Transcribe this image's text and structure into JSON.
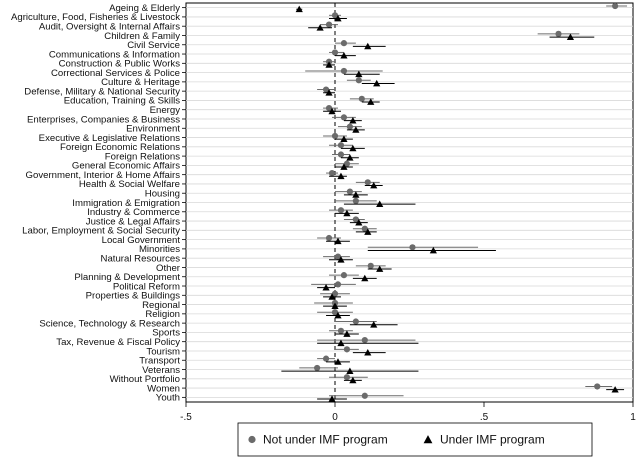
{
  "chart_data": {
    "type": "scatter",
    "orientation": "horizontal-dot-plot-with-error-bars",
    "categories": [
      "Ageing & Elderly",
      "Agriculture, Food, Fisheries & Livestock",
      "Audit, Oversight & Internal Affairs",
      "Children & Family",
      "Civil Service",
      "Communications & Information",
      "Construction & Public Works",
      "Correctional Services & Police",
      "Culture & Heritage",
      "Defense, Military & National Security",
      "Education, Training & Skills",
      "Energy",
      "Enterprises, Companies & Business",
      "Environment",
      "Executive & Legislative Relations",
      "Foreign Economic Relations",
      "Foreign Relations",
      "General Economic Affairs",
      "Government, Interior & Home Affairs",
      "Health & Social Welfare",
      "Housing",
      "Immigration & Emigration",
      "Industry & Commerce",
      "Justice & Legal Affairs",
      "Labor, Employment & Social Security",
      "Local Government",
      "Minorities",
      "Natural Resources",
      "Other",
      "Planning & Development",
      "Political Reform",
      "Properties & Buildings",
      "Regional",
      "Religion",
      "Science, Technology & Research",
      "Sports",
      "Tax, Revenue & Fiscal Policy",
      "Tourism",
      "Transport",
      "Veterans",
      "Without Portfolio",
      "Women",
      "Youth"
    ],
    "series": [
      {
        "name": "Not under IMF program",
        "marker": "circle",
        "color": "#6b6b6b",
        "values": [
          0.94,
          0.0,
          -0.02,
          0.75,
          0.03,
          0.0,
          -0.02,
          0.03,
          0.08,
          -0.03,
          0.09,
          -0.02,
          0.03,
          0.05,
          0.0,
          0.02,
          0.02,
          0.04,
          -0.01,
          0.11,
          0.05,
          0.07,
          0.02,
          0.07,
          0.1,
          -0.02,
          0.26,
          0.01,
          0.12,
          0.03,
          0.01,
          0.0,
          0.0,
          0.0,
          0.07,
          0.02,
          0.1,
          0.04,
          -0.03,
          -0.06,
          0.04,
          0.88,
          0.1
        ],
        "ci_low": [
          0.91,
          -0.02,
          -0.05,
          0.68,
          0.0,
          -0.02,
          -0.04,
          -0.1,
          0.04,
          -0.06,
          0.05,
          -0.04,
          -0.01,
          0.01,
          -0.04,
          -0.02,
          -0.01,
          0.0,
          -0.03,
          0.07,
          0.0,
          0.0,
          -0.02,
          0.03,
          0.06,
          -0.06,
          0.11,
          -0.04,
          0.07,
          -0.02,
          -0.08,
          -0.05,
          -0.07,
          -0.06,
          0.0,
          -0.02,
          -0.06,
          0.0,
          -0.06,
          -0.12,
          -0.02,
          0.84,
          -0.02
        ],
        "ci_high": [
          0.98,
          0.02,
          0.01,
          0.82,
          0.07,
          0.03,
          0.0,
          0.16,
          0.12,
          0.0,
          0.13,
          0.01,
          0.07,
          0.09,
          0.04,
          0.06,
          0.05,
          0.08,
          0.01,
          0.15,
          0.09,
          0.14,
          0.06,
          0.1,
          0.14,
          0.02,
          0.48,
          0.05,
          0.17,
          0.08,
          0.07,
          0.05,
          0.06,
          0.06,
          0.14,
          0.06,
          0.27,
          0.08,
          0.0,
          0.01,
          0.11,
          0.93,
          0.23
        ]
      },
      {
        "name": "Under IMF program",
        "marker": "triangle",
        "color": "#000000",
        "values": [
          -0.12,
          0.01,
          -0.05,
          0.79,
          0.11,
          0.03,
          -0.02,
          0.08,
          0.14,
          -0.02,
          0.12,
          -0.01,
          0.06,
          0.07,
          0.03,
          0.06,
          0.05,
          0.03,
          0.02,
          0.13,
          0.07,
          0.15,
          0.04,
          0.08,
          0.11,
          0.01,
          0.33,
          0.02,
          0.15,
          0.1,
          -0.03,
          -0.01,
          0.0,
          0.01,
          0.13,
          0.04,
          0.02,
          0.11,
          0.01,
          0.05,
          0.06,
          0.94,
          -0.01
        ],
        "ci_low": [
          -0.13,
          -0.02,
          -0.09,
          0.72,
          0.06,
          0.0,
          -0.04,
          0.03,
          0.09,
          -0.04,
          0.09,
          -0.04,
          0.03,
          0.04,
          0.0,
          0.02,
          0.02,
          0.0,
          -0.02,
          0.1,
          0.03,
          0.03,
          0.0,
          0.05,
          0.07,
          -0.03,
          0.11,
          -0.02,
          0.11,
          0.06,
          -0.06,
          -0.04,
          -0.04,
          -0.03,
          0.05,
          0.0,
          -0.06,
          0.06,
          -0.03,
          -0.18,
          0.03,
          0.91,
          -0.06
        ],
        "ci_high": [
          -0.11,
          0.04,
          -0.01,
          0.87,
          0.17,
          0.07,
          0.0,
          0.15,
          0.2,
          0.0,
          0.15,
          0.02,
          0.09,
          0.1,
          0.06,
          0.1,
          0.08,
          0.06,
          0.04,
          0.16,
          0.11,
          0.27,
          0.08,
          0.11,
          0.14,
          0.05,
          0.54,
          0.06,
          0.19,
          0.14,
          0.0,
          0.02,
          0.04,
          0.05,
          0.21,
          0.08,
          0.28,
          0.17,
          0.05,
          0.28,
          0.09,
          0.97,
          0.04
        ]
      }
    ],
    "xlim": [
      -0.5,
      1.0
    ],
    "x_ticks": [
      -0.5,
      0,
      0.5,
      1
    ],
    "x_tick_labels": [
      "-.5",
      "0",
      ".5",
      "1"
    ],
    "reference_line": 0,
    "grid": true,
    "legend": "bottom",
    "title": "",
    "xlabel": "",
    "ylabel": ""
  }
}
